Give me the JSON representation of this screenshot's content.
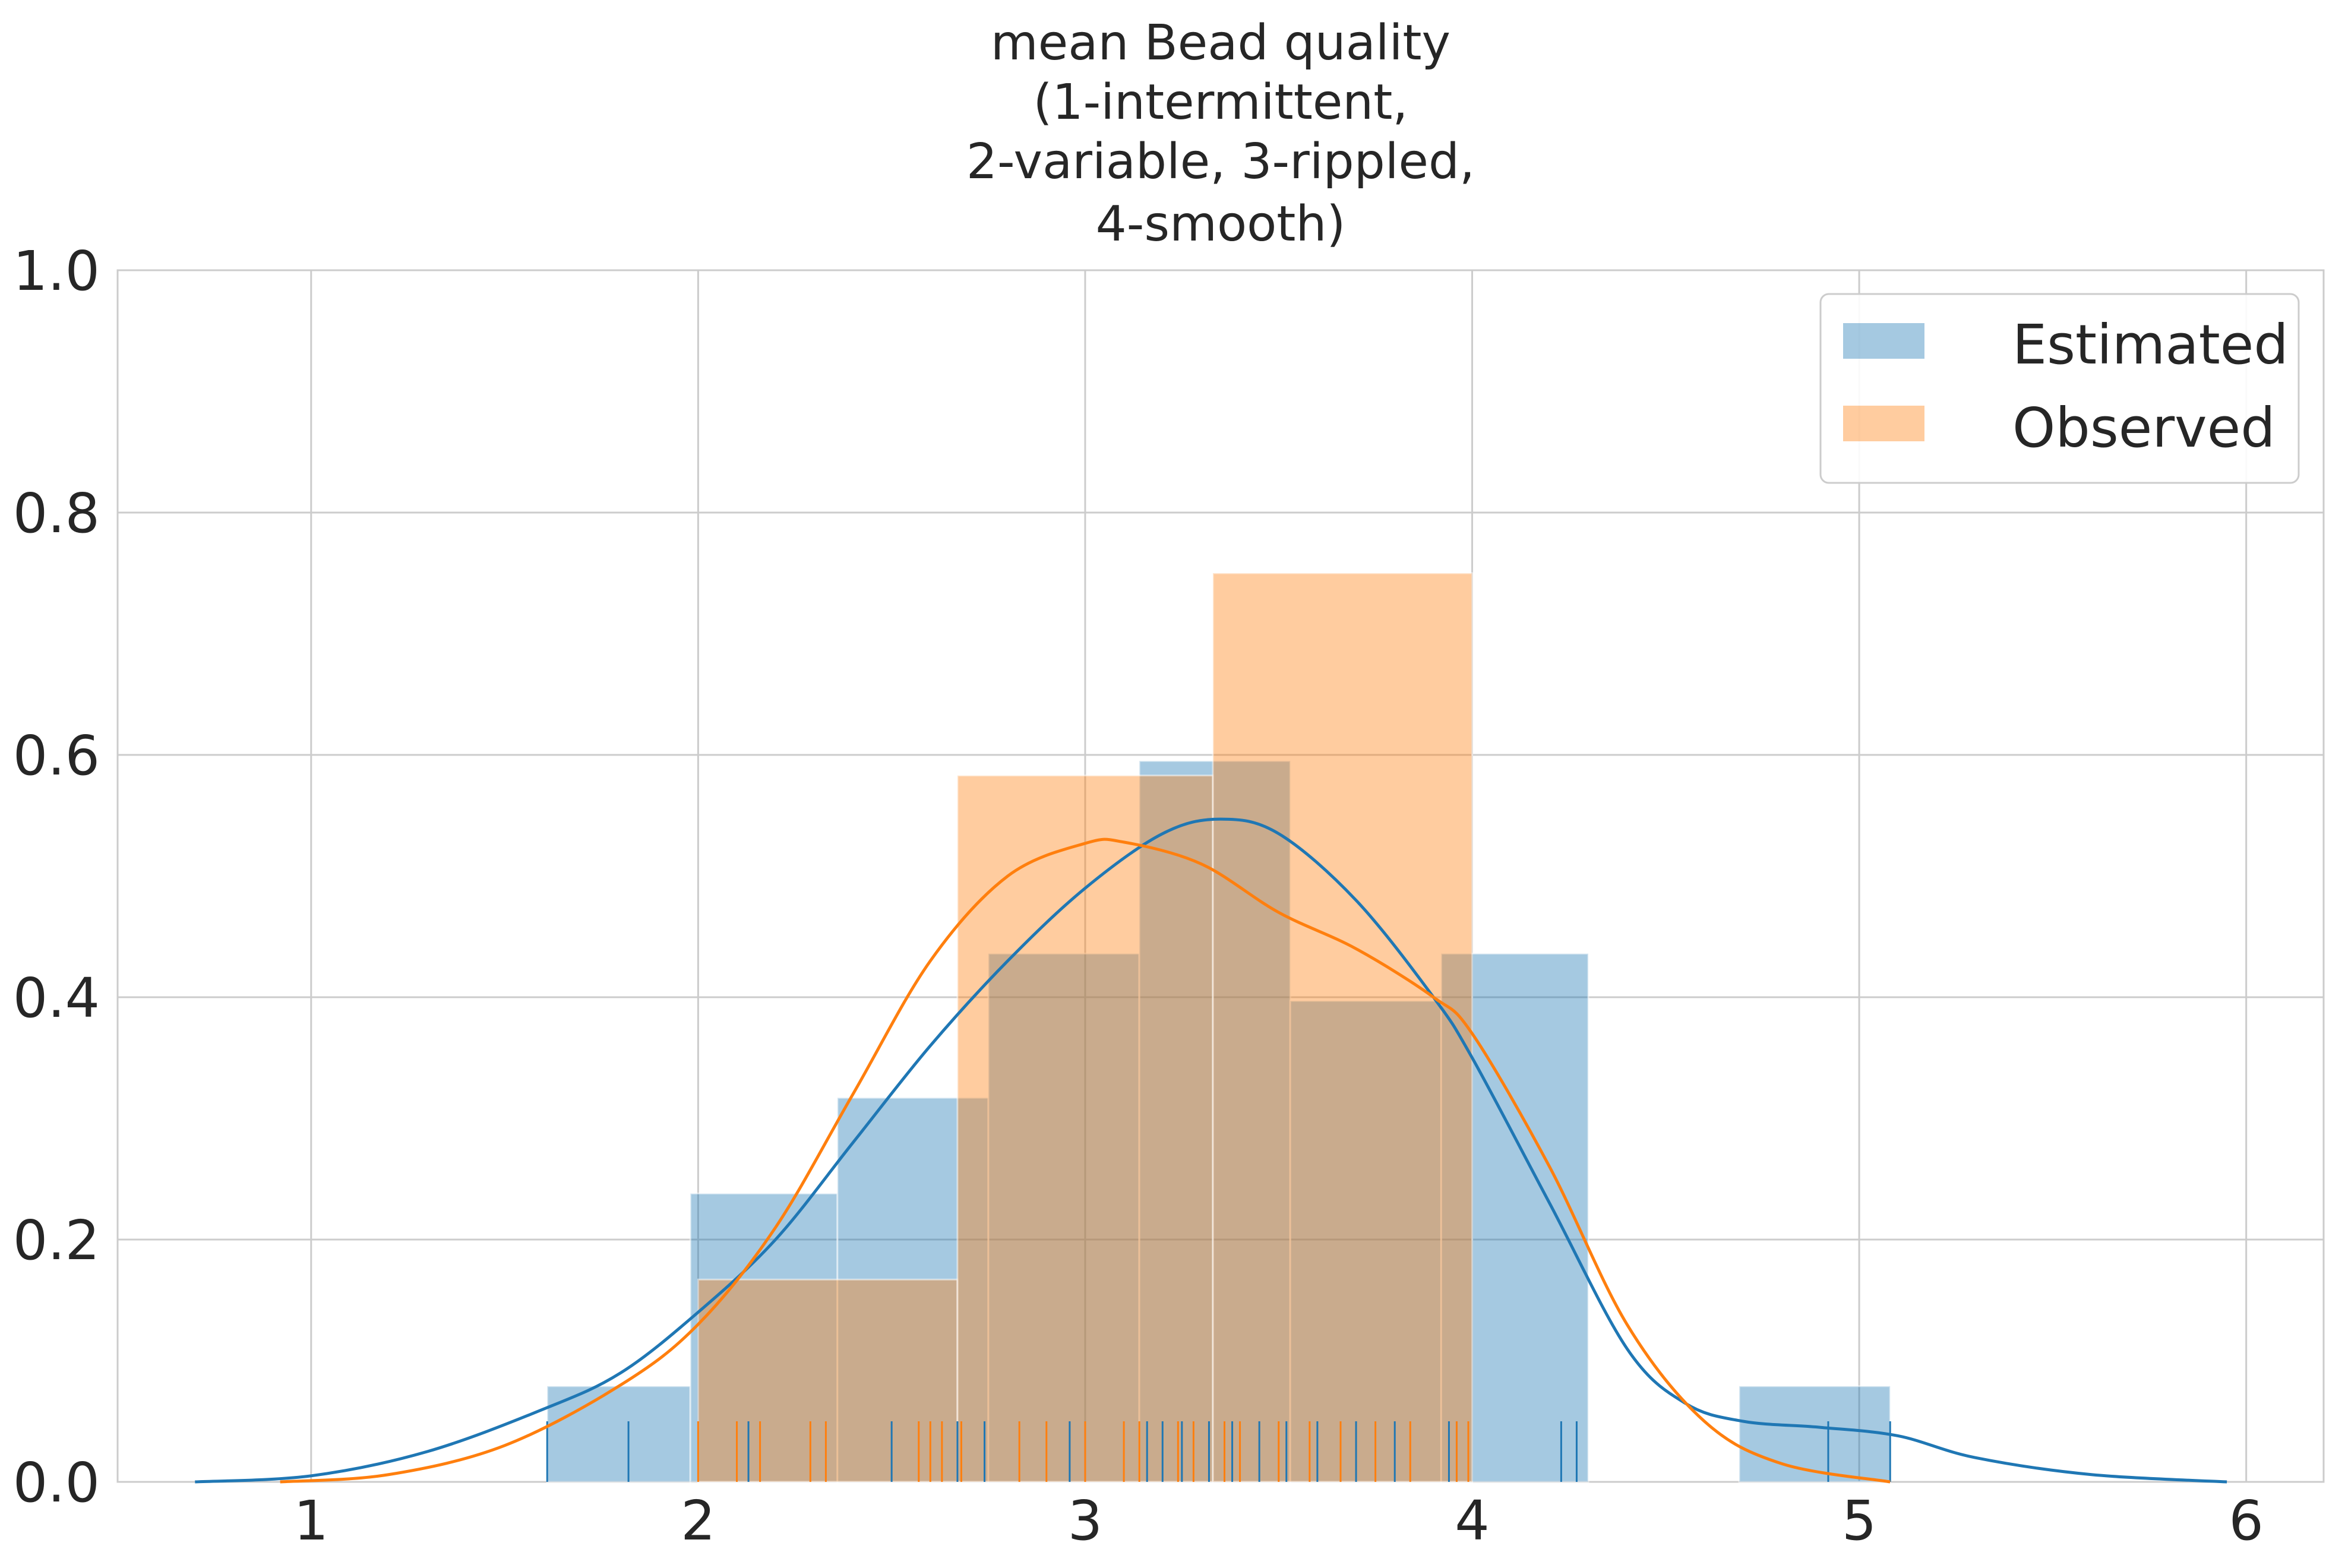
{
  "chart_data": {
    "type": "histogram",
    "title_lines": [
      "mean Bead quality",
      "(1-intermittent,",
      "2-variable, 3-rippled,",
      "4-smooth)"
    ],
    "xlim": [
      0.5,
      6.2
    ],
    "ylim": [
      0.0,
      1.0
    ],
    "x_ticks": [
      1,
      2,
      3,
      4,
      5,
      6
    ],
    "x_tick_labels": [
      "1",
      "2",
      "3",
      "4",
      "5",
      "6"
    ],
    "y_ticks": [
      0.0,
      0.2,
      0.4,
      0.6,
      0.8,
      1.0
    ],
    "y_tick_labels": [
      "0.0",
      "0.2",
      "0.4",
      "0.6",
      "0.8",
      "1.0"
    ],
    "grid": true,
    "legend_position": "top-right",
    "colors": {
      "estimated": "#1f77b4",
      "observed": "#ff7f0e"
    },
    "series": [
      {
        "name": "Estimated",
        "bins": [
          {
            "x0": 1.61,
            "x1": 1.98,
            "density": 0.079
          },
          {
            "x0": 1.98,
            "x1": 2.36,
            "density": 0.238
          },
          {
            "x0": 2.36,
            "x1": 2.75,
            "density": 0.317
          },
          {
            "x0": 2.75,
            "x1": 3.14,
            "density": 0.436
          },
          {
            "x0": 3.14,
            "x1": 3.53,
            "density": 0.595
          },
          {
            "x0": 3.53,
            "x1": 3.92,
            "density": 0.397
          },
          {
            "x0": 3.92,
            "x1": 4.3,
            "density": 0.436
          },
          {
            "x0": 4.3,
            "x1": 4.69,
            "density": 0.0
          },
          {
            "x0": 4.69,
            "x1": 5.08,
            "density": 0.079
          }
        ],
        "kde": [
          [
            0.7,
            0.0
          ],
          [
            1.0,
            0.005
          ],
          [
            1.3,
            0.025
          ],
          [
            1.6,
            0.06
          ],
          [
            1.8,
            0.09
          ],
          [
            2.0,
            0.14
          ],
          [
            2.2,
            0.2
          ],
          [
            2.4,
            0.28
          ],
          [
            2.6,
            0.36
          ],
          [
            2.8,
            0.43
          ],
          [
            3.0,
            0.49
          ],
          [
            3.2,
            0.535
          ],
          [
            3.35,
            0.547
          ],
          [
            3.5,
            0.535
          ],
          [
            3.7,
            0.48
          ],
          [
            3.9,
            0.4
          ],
          [
            4.0,
            0.35
          ],
          [
            4.2,
            0.23
          ],
          [
            4.4,
            0.11
          ],
          [
            4.55,
            0.065
          ],
          [
            4.7,
            0.05
          ],
          [
            4.9,
            0.045
          ],
          [
            5.1,
            0.038
          ],
          [
            5.3,
            0.02
          ],
          [
            5.6,
            0.006
          ],
          [
            5.95,
            0.0
          ]
        ],
        "rug": [
          1.61,
          1.82,
          2.13,
          2.5,
          2.67,
          2.74,
          2.96,
          3.16,
          3.2,
          3.25,
          3.32,
          3.38,
          3.45,
          3.52,
          3.6,
          3.7,
          3.8,
          3.94,
          3.96,
          4.23,
          4.27,
          4.92,
          5.08
        ]
      },
      {
        "name": "Observed",
        "bins": [
          {
            "x0": 2.0,
            "x1": 2.67,
            "density": 0.167
          },
          {
            "x0": 2.67,
            "x1": 3.33,
            "density": 0.583
          },
          {
            "x0": 3.33,
            "x1": 4.0,
            "density": 0.75
          }
        ],
        "kde": [
          [
            0.92,
            0.0
          ],
          [
            1.2,
            0.006
          ],
          [
            1.5,
            0.03
          ],
          [
            1.8,
            0.08
          ],
          [
            2.0,
            0.13
          ],
          [
            2.2,
            0.21
          ],
          [
            2.4,
            0.32
          ],
          [
            2.6,
            0.43
          ],
          [
            2.8,
            0.5
          ],
          [
            3.0,
            0.527
          ],
          [
            3.1,
            0.528
          ],
          [
            3.3,
            0.51
          ],
          [
            3.5,
            0.47
          ],
          [
            3.7,
            0.44
          ],
          [
            3.9,
            0.4
          ],
          [
            4.0,
            0.37
          ],
          [
            4.2,
            0.26
          ],
          [
            4.4,
            0.13
          ],
          [
            4.6,
            0.05
          ],
          [
            4.8,
            0.015
          ],
          [
            5.08,
            0.0
          ]
        ],
        "rug": [
          2.0,
          2.1,
          2.16,
          2.29,
          2.33,
          2.57,
          2.6,
          2.63,
          2.68,
          2.83,
          2.9,
          3.0,
          3.1,
          3.14,
          3.24,
          3.28,
          3.36,
          3.4,
          3.5,
          3.58,
          3.66,
          3.75,
          3.84,
          3.96,
          3.99
        ]
      }
    ]
  }
}
